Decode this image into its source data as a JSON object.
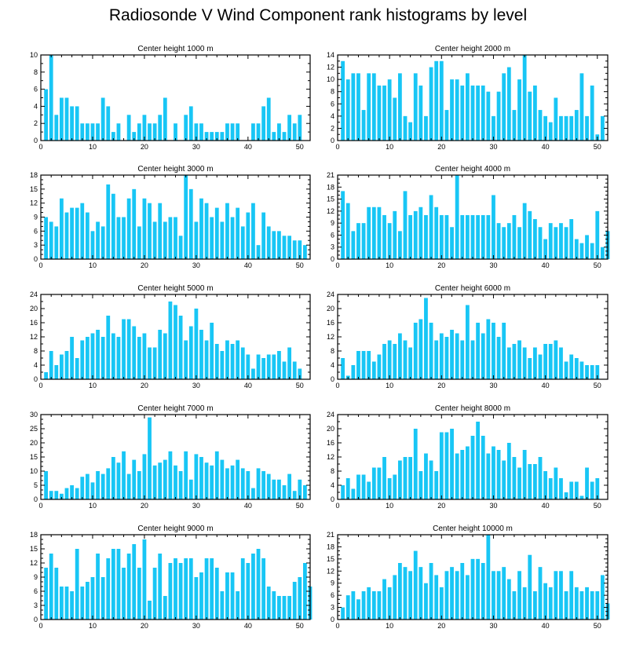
{
  "title": "Radiosonde V Wind Component rank histograms by level",
  "chart_data": [
    {
      "type": "bar",
      "title": "Center height 1000 m",
      "xlim": [
        0,
        52
      ],
      "ylim": [
        0,
        10
      ],
      "xticks": [
        0,
        10,
        20,
        30,
        40,
        50
      ],
      "yticks": [
        0,
        2,
        4,
        6,
        8,
        10
      ],
      "values": [
        6,
        10,
        3,
        5,
        5,
        4,
        4,
        2,
        2,
        2,
        2,
        5,
        4,
        1,
        2,
        0,
        3,
        1,
        2,
        3,
        2,
        2,
        3,
        5,
        0,
        2,
        0,
        3,
        4,
        2,
        2,
        1,
        1,
        1,
        1,
        2,
        2,
        2,
        0,
        0,
        2,
        2,
        4,
        5,
        1,
        2,
        1,
        3,
        2,
        3,
        0
      ]
    },
    {
      "type": "bar",
      "title": "Center height 2000 m",
      "xlim": [
        0,
        52
      ],
      "ylim": [
        0,
        14
      ],
      "xticks": [
        0,
        10,
        20,
        30,
        40,
        50
      ],
      "yticks": [
        0,
        2,
        4,
        6,
        8,
        10,
        12,
        14
      ],
      "values": [
        13,
        10,
        11,
        11,
        5,
        11,
        11,
        9,
        9,
        10,
        7,
        11,
        4,
        3,
        11,
        9,
        4,
        12,
        13,
        13,
        5,
        10,
        10,
        9,
        11,
        9,
        9,
        9,
        8,
        4,
        8,
        11,
        12,
        5,
        10,
        14,
        8,
        9,
        5,
        4,
        3,
        7,
        4,
        4,
        4,
        5,
        11,
        4,
        9,
        1,
        4
      ]
    },
    {
      "type": "bar",
      "title": "Center height 3000 m",
      "xlim": [
        0,
        52
      ],
      "ylim": [
        0,
        18
      ],
      "xticks": [
        0,
        10,
        20,
        30,
        40,
        50
      ],
      "yticks": [
        0,
        3,
        6,
        9,
        12,
        15,
        18
      ],
      "values": [
        9,
        8,
        7,
        13,
        10,
        11,
        11,
        12,
        10,
        6,
        8,
        7,
        16,
        14,
        9,
        9,
        13,
        15,
        7,
        13,
        12,
        8,
        12,
        8,
        9,
        9,
        5,
        18,
        15,
        8,
        13,
        12,
        9,
        11,
        8,
        12,
        9,
        11,
        7,
        10,
        12,
        3,
        10,
        7,
        6,
        6,
        5,
        5,
        4,
        4,
        3
      ]
    },
    {
      "type": "bar",
      "title": "Center height 4000 m",
      "xlim": [
        0,
        52
      ],
      "ylim": [
        0,
        21
      ],
      "xticks": [
        0,
        10,
        20,
        30,
        40,
        50
      ],
      "yticks": [
        0,
        3,
        6,
        9,
        12,
        15,
        18,
        21
      ],
      "values": [
        17,
        14,
        7,
        9,
        9,
        13,
        13,
        13,
        11,
        9,
        12,
        7,
        17,
        11,
        12,
        13,
        11,
        16,
        13,
        11,
        11,
        8,
        21,
        11,
        11,
        11,
        11,
        11,
        11,
        16,
        9,
        8,
        9,
        11,
        8,
        14,
        12,
        10,
        8,
        5,
        9,
        8,
        9,
        8,
        10,
        5,
        4,
        6,
        4,
        12,
        3,
        7
      ]
    },
    {
      "type": "bar",
      "title": "Center height 5000 m",
      "xlim": [
        0,
        52
      ],
      "ylim": [
        0,
        24
      ],
      "xticks": [
        0,
        10,
        20,
        30,
        40,
        50
      ],
      "yticks": [
        0,
        4,
        8,
        12,
        16,
        20,
        24
      ],
      "values": [
        2,
        8,
        4,
        7,
        8,
        12,
        6,
        11,
        12,
        13,
        14,
        12,
        18,
        13,
        12,
        17,
        17,
        15,
        12,
        13,
        9,
        9,
        14,
        13,
        22,
        21,
        18,
        11,
        15,
        20,
        14,
        11,
        16,
        10,
        8,
        11,
        10,
        11,
        9,
        7,
        3,
        7,
        6,
        7,
        7,
        8,
        5,
        9,
        5,
        3
      ]
    },
    {
      "type": "bar",
      "title": "Center height 6000 m",
      "xlim": [
        0,
        52
      ],
      "ylim": [
        0,
        24
      ],
      "xticks": [
        0,
        10,
        20,
        30,
        40,
        50
      ],
      "yticks": [
        0,
        4,
        8,
        12,
        16,
        20,
        24
      ],
      "values": [
        6,
        1,
        4,
        8,
        8,
        8,
        5,
        7,
        10,
        11,
        10,
        13,
        11,
        9,
        16,
        17,
        23,
        16,
        11,
        13,
        12,
        14,
        13,
        11,
        21,
        11,
        16,
        13,
        17,
        16,
        12,
        16,
        9,
        10,
        11,
        9,
        6,
        9,
        7,
        10,
        10,
        11,
        9,
        5,
        7,
        6,
        5,
        4,
        4,
        4
      ]
    },
    {
      "type": "bar",
      "title": "Center height 7000 m",
      "xlim": [
        0,
        52
      ],
      "ylim": [
        0,
        30
      ],
      "xticks": [
        0,
        10,
        20,
        30,
        40,
        50
      ],
      "yticks": [
        0,
        5,
        10,
        15,
        20,
        25,
        30
      ],
      "values": [
        10,
        3,
        3,
        2,
        4,
        5,
        4,
        8,
        9,
        6,
        10,
        9,
        11,
        15,
        13,
        17,
        9,
        14,
        10,
        16,
        29,
        12,
        13,
        14,
        17,
        12,
        10,
        17,
        7,
        16,
        15,
        13,
        12,
        17,
        14,
        11,
        12,
        14,
        11,
        10,
        4,
        11,
        10,
        9,
        7,
        7,
        5,
        9,
        3,
        7,
        5
      ]
    },
    {
      "type": "bar",
      "title": "Center height 8000 m",
      "xlim": [
        0,
        52
      ],
      "ylim": [
        0,
        24
      ],
      "xticks": [
        0,
        10,
        20,
        30,
        40,
        50
      ],
      "yticks": [
        0,
        4,
        8,
        12,
        16,
        20,
        24
      ],
      "values": [
        4,
        6,
        3,
        7,
        7,
        5,
        9,
        9,
        12,
        6,
        7,
        11,
        12,
        12,
        20,
        8,
        13,
        11,
        8,
        19,
        19,
        20,
        13,
        14,
        15,
        18,
        22,
        18,
        13,
        15,
        14,
        11,
        16,
        12,
        9,
        14,
        10,
        10,
        12,
        8,
        6,
        9,
        6,
        2,
        5,
        5,
        1,
        9,
        5,
        6
      ]
    },
    {
      "type": "bar",
      "title": "Center height 9000 m",
      "xlim": [
        0,
        52
      ],
      "ylim": [
        0,
        18
      ],
      "xticks": [
        0,
        10,
        20,
        30,
        40,
        50
      ],
      "yticks": [
        0,
        3,
        6,
        9,
        12,
        15,
        18
      ],
      "values": [
        11,
        14,
        11,
        7,
        7,
        6,
        15,
        7,
        8,
        9,
        14,
        9,
        13,
        15,
        15,
        11,
        14,
        16,
        11,
        17,
        4,
        11,
        14,
        5,
        12,
        13,
        12,
        13,
        13,
        9,
        10,
        13,
        13,
        11,
        6,
        10,
        10,
        6,
        13,
        12,
        14,
        15,
        13,
        7,
        6,
        5,
        5,
        5,
        8,
        9,
        12,
        7
      ]
    },
    {
      "type": "bar",
      "title": "Center height 10000 m",
      "xlim": [
        0,
        52
      ],
      "ylim": [
        0,
        21
      ],
      "xticks": [
        0,
        10,
        20,
        30,
        40,
        50
      ],
      "yticks": [
        0,
        3,
        6,
        9,
        12,
        15,
        18,
        21
      ],
      "values": [
        3,
        6,
        7,
        5,
        7,
        8,
        7,
        7,
        10,
        8,
        11,
        14,
        13,
        12,
        17,
        13,
        9,
        14,
        11,
        8,
        12,
        13,
        12,
        14,
        11,
        15,
        15,
        14,
        21,
        12,
        12,
        13,
        10,
        7,
        12,
        8,
        16,
        7,
        13,
        9,
        8,
        12,
        12,
        7,
        12,
        8,
        7,
        8,
        7,
        7,
        11,
        4
      ]
    }
  ]
}
